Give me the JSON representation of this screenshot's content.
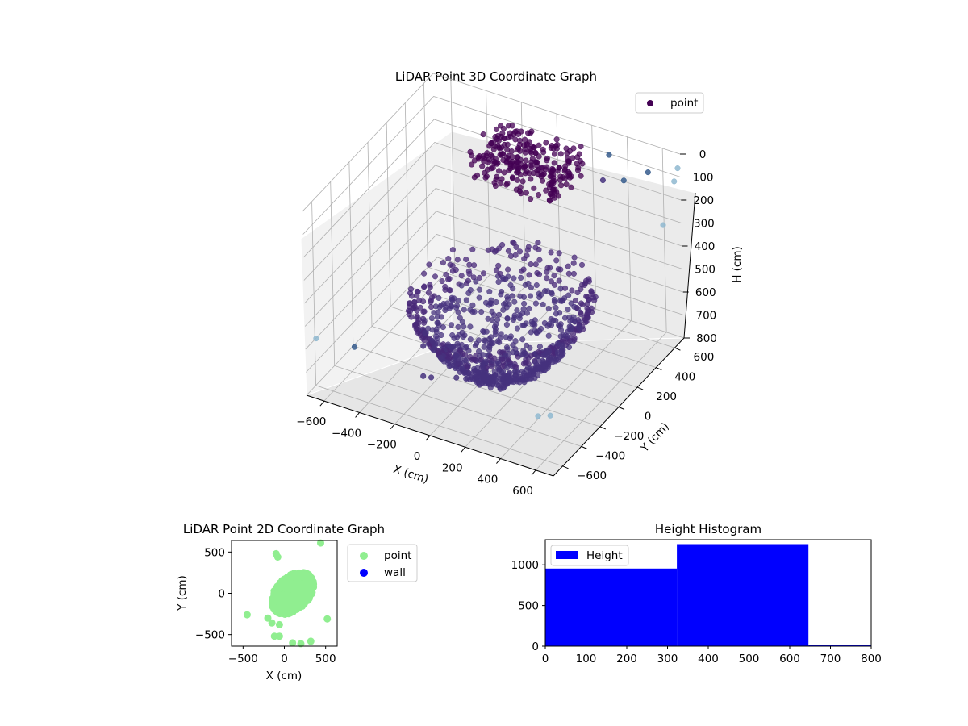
{
  "chart_data": [
    {
      "type": "scatter",
      "title": "LiDAR Point 3D Coordinate Graph",
      "xlabel": "X (cm)",
      "ylabel": "Y (cm)",
      "zlabel": "H (cm)",
      "xlim": [
        -700,
        700
      ],
      "ylim": [
        -700,
        700
      ],
      "zlim": [
        0,
        800
      ],
      "z_inverted": true,
      "x_ticks": [
        "−600",
        "−400",
        "−200",
        "0",
        "200",
        "400",
        "600"
      ],
      "y_ticks": [
        "−600",
        "−400",
        "−200",
        "0",
        "200",
        "400",
        "600"
      ],
      "z_ticks": [
        "0",
        "100",
        "200",
        "300",
        "400",
        "500",
        "600",
        "700",
        "800"
      ],
      "legend": {
        "entries": [
          "point"
        ],
        "placement": "top-right"
      },
      "grid": true,
      "colors": {
        "near": "#440154",
        "mid": "#46327e",
        "far": "#365c8d",
        "farthest": "#8fb8d0"
      },
      "points": [
        [
          -660,
          -660,
          560
        ],
        [
          -420,
          -700,
          520
        ],
        [
          -80,
          -610,
          600
        ],
        [
          -40,
          -600,
          600
        ],
        [
          60,
          -520,
          610
        ],
        [
          180,
          -500,
          620
        ],
        [
          -120,
          -350,
          640
        ],
        [
          -80,
          -260,
          660
        ],
        [
          620,
          -700,
          560
        ],
        [
          690,
          -700,
          540
        ],
        [
          690,
          650,
          100
        ],
        [
          690,
          690,
          60
        ],
        [
          520,
          690,
          120
        ],
        [
          430,
          600,
          140
        ],
        [
          300,
          690,
          100
        ],
        [
          300,
          620,
          180
        ],
        [
          600,
          690,
          330
        ],
        [
          -300,
          -200,
          700
        ],
        [
          -200,
          -100,
          720
        ]
      ],
      "clusters": [
        {
          "name": "ceiling",
          "x_range": [
            -300,
            200
          ],
          "y_range": [
            300,
            650
          ],
          "z_range": [
            60,
            200
          ]
        },
        {
          "name": "floor-bowl",
          "x_range": [
            -400,
            550
          ],
          "y_range": [
            -600,
            450
          ],
          "z_range": [
            450,
            800
          ]
        }
      ]
    },
    {
      "type": "scatter",
      "title": "LiDAR Point 2D Coordinate Graph",
      "xlabel": "X (cm)",
      "ylabel": "Y (cm)",
      "xlim": [
        -640,
        640
      ],
      "ylim": [
        -640,
        640
      ],
      "x_ticks": [
        "−500",
        "0",
        "500"
      ],
      "y_ticks": [
        "500",
        "0",
        "−500"
      ],
      "legend": {
        "entries": [
          "point",
          "wall"
        ],
        "placement": "outside-right"
      },
      "series": [
        {
          "name": "point",
          "color": "#90ee90",
          "points": [
            [
              -450,
              -260
            ],
            [
              -100,
              480
            ],
            [
              -80,
              440
            ],
            [
              -60,
              -520
            ],
            [
              -120,
              -520
            ],
            [
              100,
              -600
            ],
            [
              200,
              -610
            ],
            [
              320,
              -580
            ],
            [
              520,
              -310
            ],
            [
              440,
              610
            ],
            [
              -200,
              -300
            ],
            [
              -150,
              -360
            ],
            [
              -60,
              -380
            ]
          ]
        },
        {
          "name": "wall",
          "color": "#0000ff",
          "points": []
        }
      ],
      "cluster": {
        "center": [
          100,
          0
        ],
        "extent": {
          "x": [
            -400,
            480
          ],
          "y": [
            -400,
            430
          ]
        }
      }
    },
    {
      "type": "bar",
      "title": "Height Histogram",
      "series": [
        {
          "name": "Height",
          "color": "#0000ff"
        }
      ],
      "bins": [
        {
          "start": 0,
          "end": 323,
          "count": 955
        },
        {
          "start": 323,
          "end": 646,
          "count": 1255
        },
        {
          "start": 646,
          "end": 800,
          "count": 18
        }
      ],
      "xlim": [
        0,
        800
      ],
      "ylim": [
        0,
        1310
      ],
      "x_ticks": [
        "0",
        "100",
        "200",
        "300",
        "400",
        "500",
        "600",
        "700",
        "800"
      ],
      "y_ticks": [
        "0",
        "500",
        "1000"
      ],
      "legend": {
        "entries": [
          "Height"
        ],
        "placement": "top-left"
      }
    }
  ]
}
